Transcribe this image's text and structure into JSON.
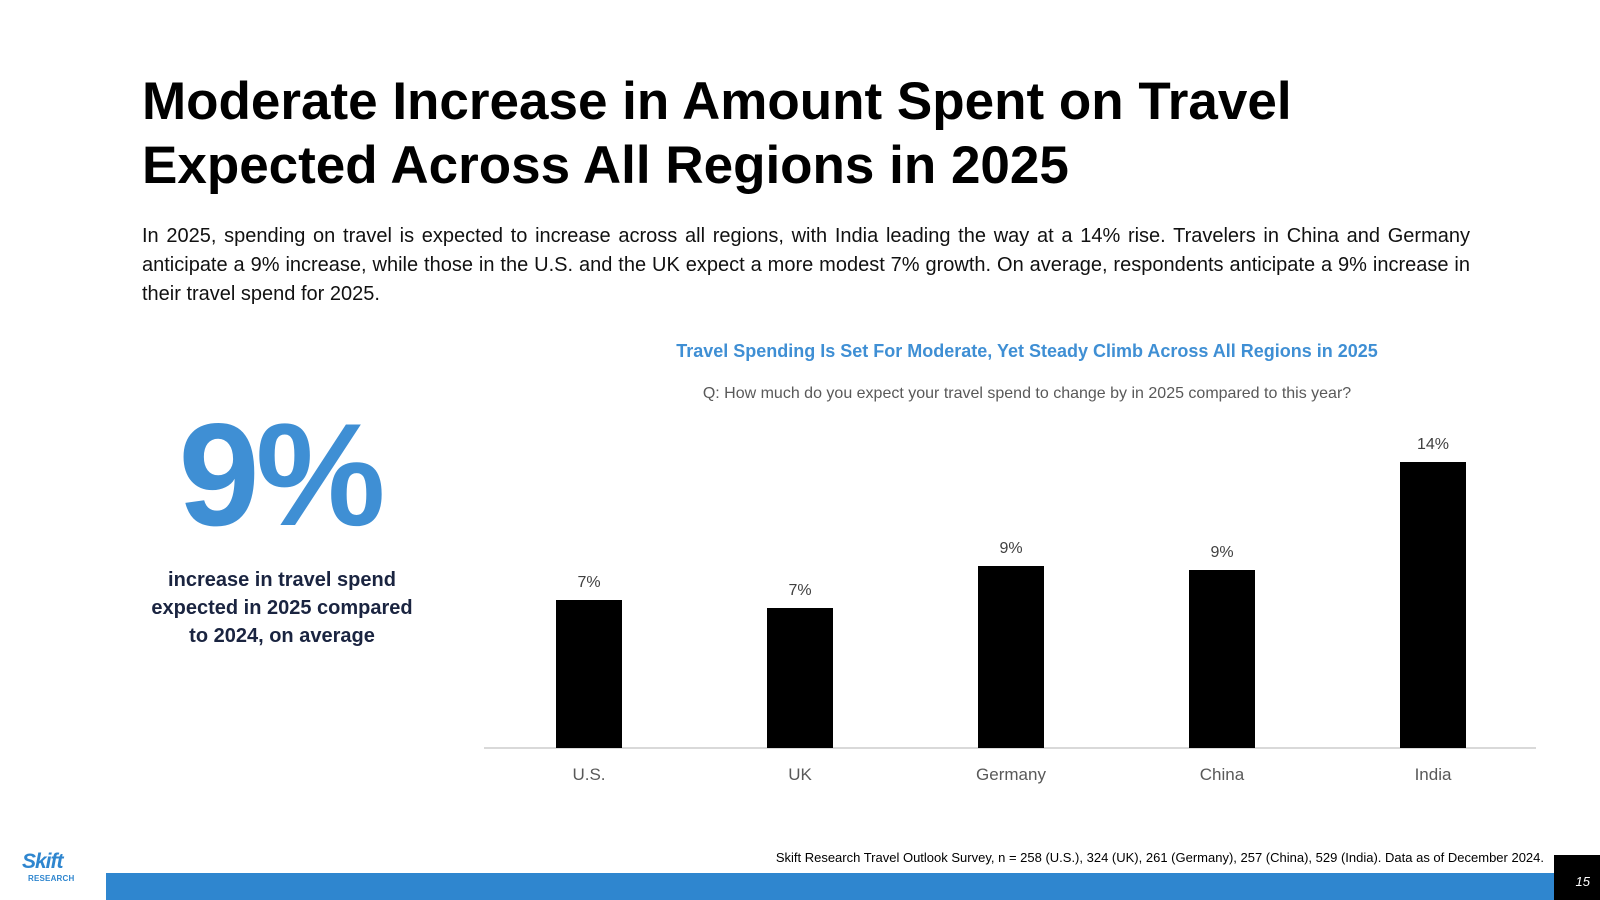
{
  "slide": {
    "title_line1": "Moderate Increase in Amount Spent on Travel",
    "title_line2": "Expected Across All Regions in 2025",
    "body": "In 2025, spending on travel is expected to increase across all regions, with India leading the way at a 14% rise. Travelers in China and Germany anticipate a 9% increase, while those in the U.S. and the UK expect a more modest 7% growth. On average, respondents anticipate a 9% increase in their travel spend for 2025.",
    "stat_value": "9%",
    "stat_caption_line1": "increase in travel spend",
    "stat_caption_line2": "expected in 2025 compared",
    "stat_caption_line3": "to 2024, on average",
    "source": "Skift Research Travel Outlook Survey, n = 258 (U.S.), 324 (UK), 261 (Germany), 257 (China), 529 (India). Data as of December  2024.",
    "page_number": "15",
    "logo_word": "Skift",
    "logo_sub": "RESEARCH"
  },
  "colors": {
    "accent_blue": "#3f8fd4",
    "footer_blue": "#2f86cf",
    "bar": "#000000",
    "axis": "#d9d9d9"
  },
  "chart_data": {
    "type": "bar",
    "title": "Travel Spending Is Set For Moderate, Yet Steady Climb Across All Regions in 2025",
    "subtitle": "Q: How much do you expect your travel spend to change by in 2025 compared to this year?",
    "categories": [
      "U.S.",
      "UK",
      "Germany",
      "China",
      "India"
    ],
    "values": [
      7.4,
      7.0,
      9.1,
      8.9,
      14.3
    ],
    "labels": [
      "7%",
      "7%",
      "9%",
      "9%",
      "14%"
    ],
    "xlabel": "",
    "ylabel": "",
    "ylim": [
      0,
      15
    ],
    "grid": false,
    "legend": "none"
  }
}
